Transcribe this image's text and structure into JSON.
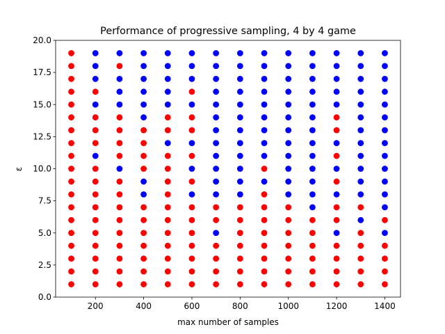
{
  "chart_data": {
    "type": "scatter",
    "title": "Performance of progressive sampling, 4 by 4 game",
    "xlabel": "max number of samples",
    "ylabel": "ε",
    "xlim": [
      35,
      1465
    ],
    "ylim": [
      0,
      20
    ],
    "xticks": [
      200,
      400,
      600,
      800,
      1000,
      1200,
      1400
    ],
    "yticks": [
      {
        "value": 0,
        "label": "0.0"
      },
      {
        "value": 2.5,
        "label": "2.5"
      },
      {
        "value": 5,
        "label": "5.0"
      },
      {
        "value": 7.5,
        "label": "7.5"
      },
      {
        "value": 10,
        "label": "10.0"
      },
      {
        "value": 12.5,
        "label": "12.5"
      },
      {
        "value": 15,
        "label": "15.0"
      },
      {
        "value": 17.5,
        "label": "17.5"
      },
      {
        "value": 20,
        "label": "20.0"
      }
    ],
    "series": [
      {
        "color": "#ff0000",
        "x": [
          100,
          100,
          100,
          100,
          100,
          100,
          100,
          100,
          100,
          100,
          100,
          100,
          100,
          100,
          100,
          100,
          100,
          100,
          100,
          200,
          200,
          200,
          200,
          200,
          200,
          200,
          200,
          200,
          200,
          200,
          200,
          200,
          200,
          300,
          300,
          300,
          300,
          300,
          300,
          300,
          300,
          300,
          300,
          300,
          300,
          300,
          300,
          400,
          400,
          400,
          400,
          400,
          400,
          400,
          400,
          400,
          400,
          400,
          500,
          500,
          500,
          500,
          500,
          500,
          500,
          500,
          500,
          500,
          500,
          500,
          500,
          600,
          600,
          600,
          600,
          600,
          600,
          600,
          600,
          600,
          600,
          600,
          600,
          700,
          700,
          700,
          700,
          700,
          700,
          800,
          800,
          800,
          800,
          800,
          800,
          800,
          900,
          900,
          900,
          900,
          900,
          900,
          900,
          900,
          900,
          1000,
          1000,
          1000,
          1000,
          1000,
          1000,
          1000,
          1100,
          1100,
          1100,
          1100,
          1100,
          1100,
          1200,
          1200,
          1200,
          1200,
          1200,
          1200,
          1200,
          1200,
          1200,
          1200,
          1300,
          1300,
          1300,
          1300,
          1300,
          1300,
          1400,
          1400,
          1400,
          1400,
          1400
        ],
        "values": [
          1,
          2,
          3,
          4,
          5,
          6,
          7,
          8,
          9,
          10,
          11,
          12,
          13,
          14,
          15,
          16,
          17,
          18,
          19,
          1,
          2,
          3,
          4,
          5,
          6,
          7,
          8,
          9,
          10,
          12,
          13,
          14,
          16,
          1,
          2,
          3,
          4,
          5,
          6,
          7,
          8,
          9,
          11,
          12,
          13,
          14,
          18,
          1,
          2,
          3,
          4,
          5,
          6,
          7,
          10,
          11,
          12,
          13,
          1,
          2,
          3,
          4,
          5,
          6,
          7,
          8,
          9,
          10,
          11,
          13,
          14,
          1,
          2,
          3,
          4,
          5,
          6,
          7,
          9,
          11,
          13,
          14,
          16,
          1,
          2,
          3,
          4,
          6,
          7,
          1,
          2,
          3,
          4,
          5,
          6,
          7,
          1,
          2,
          3,
          4,
          5,
          6,
          7,
          8,
          10,
          1,
          2,
          3,
          4,
          5,
          6,
          7,
          1,
          2,
          3,
          4,
          5,
          6,
          1,
          2,
          3,
          4,
          6,
          7,
          9,
          11,
          13,
          14,
          1,
          2,
          3,
          4,
          5,
          7,
          1,
          2,
          3,
          4,
          6
        ]
      },
      {
        "color": "#0000ff",
        "x": [
          200,
          200,
          200,
          200,
          200,
          300,
          300,
          300,
          300,
          300,
          400,
          400,
          400,
          400,
          400,
          400,
          400,
          400,
          500,
          500,
          500,
          500,
          500,
          500,
          600,
          600,
          600,
          600,
          600,
          600,
          600,
          700,
          700,
          700,
          700,
          700,
          700,
          700,
          700,
          700,
          700,
          700,
          700,
          700,
          800,
          800,
          800,
          800,
          800,
          800,
          800,
          800,
          800,
          800,
          800,
          800,
          900,
          900,
          900,
          900,
          900,
          900,
          900,
          900,
          900,
          900,
          1000,
          1000,
          1000,
          1000,
          1000,
          1000,
          1000,
          1000,
          1000,
          1000,
          1000,
          1000,
          1100,
          1100,
          1100,
          1100,
          1100,
          1100,
          1100,
          1100,
          1100,
          1100,
          1100,
          1100,
          1100,
          1200,
          1200,
          1200,
          1200,
          1200,
          1200,
          1200,
          1200,
          1200,
          1300,
          1300,
          1300,
          1300,
          1300,
          1300,
          1300,
          1300,
          1300,
          1300,
          1300,
          1300,
          1300,
          1400,
          1400,
          1400,
          1400,
          1400,
          1400,
          1400,
          1400,
          1400,
          1400,
          1400,
          1400,
          1400,
          1400
        ],
        "values": [
          11,
          15,
          17,
          18,
          19,
          10,
          15,
          16,
          17,
          19,
          8,
          9,
          14,
          15,
          16,
          17,
          18,
          19,
          12,
          15,
          16,
          17,
          18,
          19,
          8,
          10,
          12,
          15,
          17,
          18,
          19,
          5,
          8,
          9,
          10,
          11,
          12,
          13,
          14,
          15,
          16,
          17,
          18,
          19,
          8,
          9,
          10,
          11,
          12,
          13,
          14,
          15,
          16,
          17,
          18,
          19,
          9,
          11,
          12,
          13,
          14,
          15,
          16,
          17,
          18,
          19,
          8,
          9,
          10,
          11,
          12,
          13,
          14,
          15,
          16,
          17,
          18,
          19,
          7,
          8,
          9,
          10,
          11,
          12,
          13,
          14,
          15,
          16,
          17,
          18,
          19,
          5,
          8,
          10,
          12,
          15,
          16,
          17,
          18,
          19,
          6,
          8,
          9,
          10,
          11,
          12,
          13,
          14,
          15,
          16,
          17,
          18,
          19,
          5,
          7,
          8,
          9,
          10,
          11,
          12,
          13,
          14,
          15,
          16,
          17,
          18,
          19
        ]
      }
    ]
  }
}
